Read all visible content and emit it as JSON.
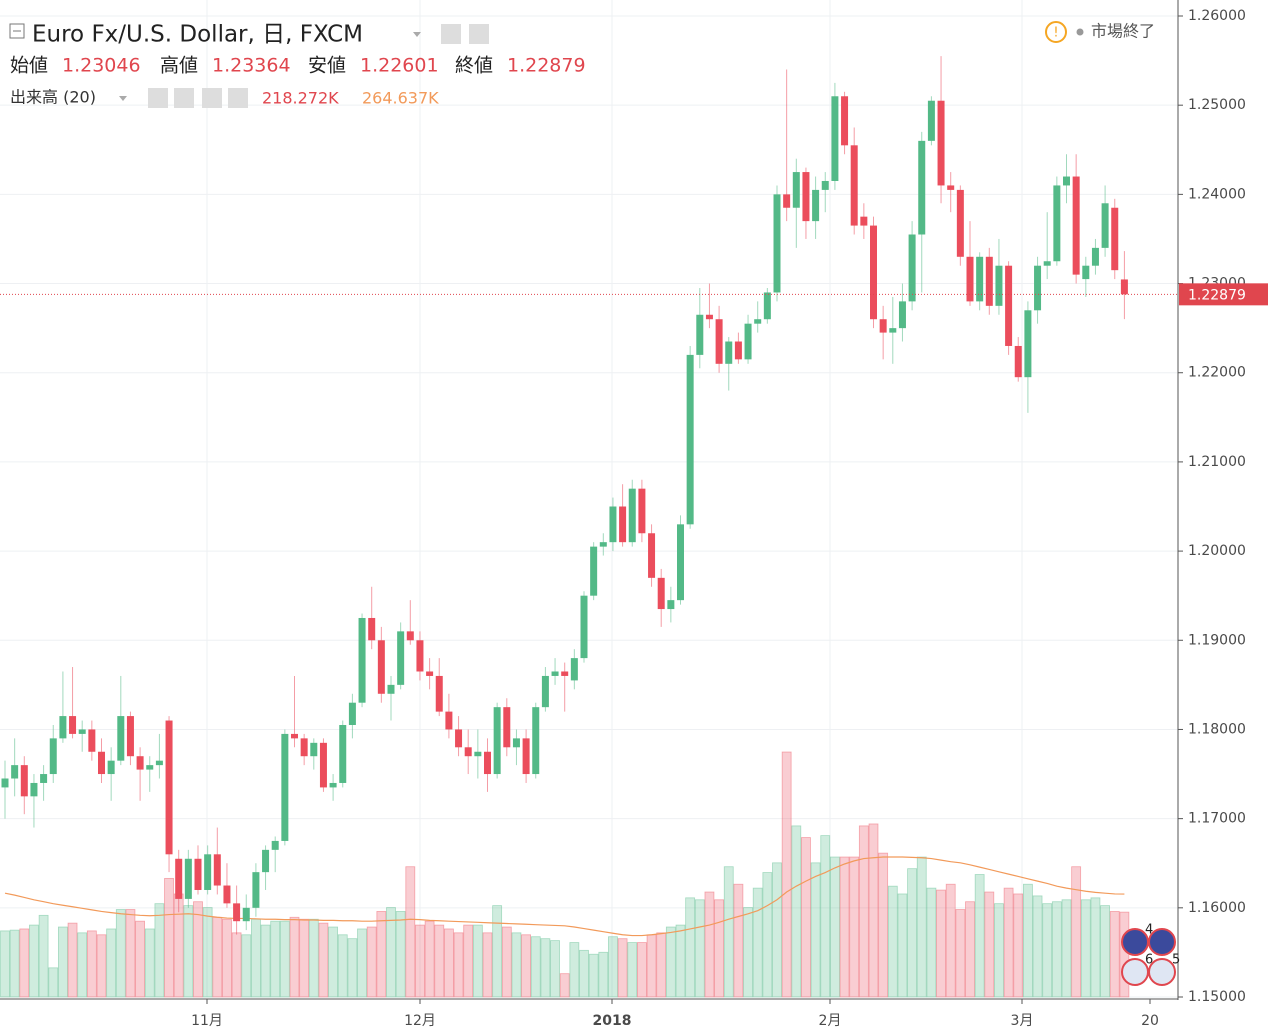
{
  "chart_data": {
    "type": "candlestick",
    "title": "Euro Fx/U.S. Dollar, 日, FXCM",
    "status": "市場終了",
    "ohlc_labels": [
      "始値",
      "高値",
      "安値",
      "終値"
    ],
    "up_color": "#53b987",
    "down_color": "#eb4d5c",
    "grid": true,
    "ylim": [
      1.15,
      1.26
    ],
    "yticks": [
      {
        "value": 1.15,
        "label": "1.15000"
      },
      {
        "value": 1.16,
        "label": "1.16000"
      },
      {
        "value": 1.17,
        "label": "1.17000"
      },
      {
        "value": 1.18,
        "label": "1.18000"
      },
      {
        "value": 1.19,
        "label": "1.19000"
      },
      {
        "value": 1.2,
        "label": "1.20000"
      },
      {
        "value": 1.21,
        "label": "1.21000"
      },
      {
        "value": 1.22,
        "label": "1.22000"
      },
      {
        "value": 1.23,
        "label": "1.23000"
      },
      {
        "value": 1.24,
        "label": "1.24000"
      },
      {
        "value": 1.25,
        "label": "1.25000"
      },
      {
        "value": 1.26,
        "label": "1.26000"
      }
    ],
    "xtick_labels": [
      "11月",
      "12月",
      "2018",
      "2月",
      "3月",
      "20"
    ],
    "candles": [
      [
        1.1735,
        1.1765,
        1.17,
        1.1745
      ],
      [
        1.1745,
        1.179,
        1.1725,
        1.176
      ],
      [
        1.176,
        1.177,
        1.1705,
        1.1725
      ],
      [
        1.1725,
        1.175,
        1.169,
        1.174
      ],
      [
        1.174,
        1.176,
        1.172,
        1.175
      ],
      [
        1.175,
        1.1805,
        1.174,
        1.179
      ],
      [
        1.179,
        1.1865,
        1.1785,
        1.1815
      ],
      [
        1.1815,
        1.187,
        1.179,
        1.1795
      ],
      [
        1.1795,
        1.181,
        1.1775,
        1.18
      ],
      [
        1.18,
        1.181,
        1.1765,
        1.1775
      ],
      [
        1.1775,
        1.179,
        1.174,
        1.175
      ],
      [
        1.175,
        1.178,
        1.172,
        1.1765
      ],
      [
        1.1765,
        1.186,
        1.176,
        1.1815
      ],
      [
        1.1815,
        1.182,
        1.176,
        1.177
      ],
      [
        1.177,
        1.178,
        1.172,
        1.1755
      ],
      [
        1.1755,
        1.177,
        1.173,
        1.176
      ],
      [
        1.176,
        1.1795,
        1.1745,
        1.1765
      ],
      [
        1.181,
        1.1815,
        1.164,
        1.166
      ],
      [
        1.1655,
        1.1665,
        1.1595,
        1.161
      ],
      [
        1.161,
        1.1665,
        1.16,
        1.1655
      ],
      [
        1.1655,
        1.167,
        1.1615,
        1.162
      ],
      [
        1.162,
        1.167,
        1.1615,
        1.166
      ],
      [
        1.166,
        1.169,
        1.1615,
        1.1625
      ],
      [
        1.1625,
        1.165,
        1.16,
        1.1605
      ],
      [
        1.1605,
        1.1625,
        1.157,
        1.1585
      ],
      [
        1.1585,
        1.1615,
        1.1575,
        1.16
      ],
      [
        1.16,
        1.165,
        1.159,
        1.164
      ],
      [
        1.164,
        1.167,
        1.162,
        1.1665
      ],
      [
        1.1665,
        1.168,
        1.164,
        1.1675
      ],
      [
        1.1675,
        1.18,
        1.167,
        1.1795
      ],
      [
        1.1795,
        1.186,
        1.178,
        1.179
      ],
      [
        1.179,
        1.1795,
        1.176,
        1.177
      ],
      [
        1.177,
        1.179,
        1.1755,
        1.1785
      ],
      [
        1.1785,
        1.179,
        1.173,
        1.1735
      ],
      [
        1.1735,
        1.175,
        1.172,
        1.174
      ],
      [
        1.174,
        1.181,
        1.1735,
        1.1805
      ],
      [
        1.1805,
        1.184,
        1.179,
        1.183
      ],
      [
        1.183,
        1.193,
        1.1825,
        1.1925
      ],
      [
        1.1925,
        1.196,
        1.189,
        1.19
      ],
      [
        1.19,
        1.1915,
        1.183,
        1.184
      ],
      [
        1.184,
        1.186,
        1.181,
        1.185
      ],
      [
        1.185,
        1.192,
        1.1845,
        1.191
      ],
      [
        1.191,
        1.1945,
        1.1895,
        1.19
      ],
      [
        1.19,
        1.191,
        1.1855,
        1.1865
      ],
      [
        1.1865,
        1.188,
        1.1845,
        1.186
      ],
      [
        1.186,
        1.188,
        1.1815,
        1.182
      ],
      [
        1.182,
        1.184,
        1.179,
        1.18
      ],
      [
        1.18,
        1.1815,
        1.177,
        1.178
      ],
      [
        1.178,
        1.18,
        1.175,
        1.177
      ],
      [
        1.177,
        1.18,
        1.1745,
        1.1775
      ],
      [
        1.1775,
        1.179,
        1.173,
        1.175
      ],
      [
        1.175,
        1.183,
        1.1745,
        1.1825
      ],
      [
        1.1825,
        1.1835,
        1.177,
        1.178
      ],
      [
        1.178,
        1.18,
        1.176,
        1.179
      ],
      [
        1.179,
        1.18,
        1.174,
        1.175
      ],
      [
        1.175,
        1.183,
        1.1745,
        1.1825
      ],
      [
        1.1825,
        1.187,
        1.182,
        1.186
      ],
      [
        1.186,
        1.188,
        1.185,
        1.1865
      ],
      [
        1.1865,
        1.1875,
        1.182,
        1.186
      ],
      [
        1.1855,
        1.189,
        1.1845,
        1.188
      ],
      [
        1.188,
        1.1955,
        1.1875,
        1.195
      ],
      [
        1.195,
        1.201,
        1.1945,
        1.2005
      ],
      [
        1.2005,
        1.202,
        1.1995,
        1.201
      ],
      [
        1.201,
        1.206,
        1.2,
        1.205
      ],
      [
        1.205,
        1.2075,
        1.2005,
        1.201
      ],
      [
        1.201,
        1.208,
        1.2005,
        1.207
      ],
      [
        1.207,
        1.208,
        1.201,
        1.202
      ],
      [
        1.202,
        1.203,
        1.196,
        1.197
      ],
      [
        1.197,
        1.198,
        1.1915,
        1.1935
      ],
      [
        1.1935,
        1.196,
        1.192,
        1.1945
      ],
      [
        1.1945,
        1.204,
        1.194,
        1.203
      ],
      [
        1.203,
        1.223,
        1.2025,
        1.222
      ],
      [
        1.222,
        1.2295,
        1.2205,
        1.2265
      ],
      [
        1.2265,
        1.23,
        1.225,
        1.226
      ],
      [
        1.226,
        1.2275,
        1.22,
        1.221
      ],
      [
        1.221,
        1.224,
        1.218,
        1.2235
      ],
      [
        1.2235,
        1.2245,
        1.221,
        1.2215
      ],
      [
        1.2215,
        1.2265,
        1.221,
        1.2255
      ],
      [
        1.2255,
        1.228,
        1.2245,
        1.226
      ],
      [
        1.226,
        1.2295,
        1.2255,
        1.229
      ],
      [
        1.229,
        1.241,
        1.228,
        1.24
      ],
      [
        1.24,
        1.254,
        1.237,
        1.2385
      ],
      [
        1.2385,
        1.244,
        1.234,
        1.2425
      ],
      [
        1.2425,
        1.243,
        1.235,
        1.237
      ],
      [
        1.237,
        1.242,
        1.235,
        1.2405
      ],
      [
        1.2405,
        1.2425,
        1.238,
        1.2415
      ],
      [
        1.2415,
        1.2525,
        1.2405,
        1.251
      ],
      [
        1.251,
        1.2515,
        1.2445,
        1.2455
      ],
      [
        1.2455,
        1.2475,
        1.2355,
        1.2365
      ],
      [
        1.2375,
        1.239,
        1.235,
        1.2365
      ],
      [
        1.2365,
        1.2375,
        1.225,
        1.226
      ],
      [
        1.226,
        1.2275,
        1.2215,
        1.2245
      ],
      [
        1.2245,
        1.2285,
        1.221,
        1.225
      ],
      [
        1.225,
        1.23,
        1.2235,
        1.228
      ],
      [
        1.228,
        1.237,
        1.227,
        1.2355
      ],
      [
        1.2355,
        1.247,
        1.229,
        1.246
      ],
      [
        1.246,
        1.251,
        1.2455,
        1.2505
      ],
      [
        1.2505,
        1.2555,
        1.239,
        1.241
      ],
      [
        1.241,
        1.2425,
        1.238,
        1.2405
      ],
      [
        1.2405,
        1.241,
        1.232,
        1.233
      ],
      [
        1.233,
        1.237,
        1.2275,
        1.228
      ],
      [
        1.228,
        1.2335,
        1.227,
        1.233
      ],
      [
        1.233,
        1.234,
        1.2265,
        1.2275
      ],
      [
        1.2275,
        1.235,
        1.2265,
        1.232
      ],
      [
        1.232,
        1.2325,
        1.222,
        1.223
      ],
      [
        1.223,
        1.224,
        1.219,
        1.2195
      ],
      [
        1.2195,
        1.228,
        1.2155,
        1.227
      ],
      [
        1.227,
        1.233,
        1.2255,
        1.232
      ],
      [
        1.232,
        1.238,
        1.2305,
        1.2325
      ],
      [
        1.2325,
        1.242,
        1.232,
        1.241
      ],
      [
        1.241,
        1.2445,
        1.239,
        1.242
      ],
      [
        1.242,
        1.2445,
        1.23,
        1.231
      ],
      [
        1.2305,
        1.233,
        1.2285,
        1.232
      ],
      [
        1.232,
        1.235,
        1.231,
        1.234
      ],
      [
        1.234,
        1.241,
        1.233,
        1.239
      ],
      [
        1.2385,
        1.2395,
        1.2305,
        1.2315
      ],
      [
        1.23046,
        1.23364,
        1.22601,
        1.22879
      ]
    ],
    "volume": {
      "name": "出来高 (20)",
      "values": [
        170,
        172,
        175,
        185,
        210,
        75,
        180,
        190,
        165,
        170,
        160,
        175,
        225,
        225,
        195,
        175,
        240,
        305,
        265,
        235,
        245,
        230,
        205,
        200,
        165,
        160,
        200,
        185,
        195,
        195,
        205,
        200,
        200,
        190,
        180,
        160,
        150,
        175,
        180,
        220,
        230,
        220,
        335,
        185,
        195,
        185,
        175,
        165,
        185,
        185,
        165,
        235,
        180,
        165,
        160,
        155,
        150,
        145,
        60,
        140,
        120,
        110,
        115,
        155,
        150,
        140,
        140,
        160,
        165,
        180,
        185,
        255,
        250,
        270,
        250,
        335,
        290,
        230,
        280,
        320,
        345,
        630,
        440,
        410,
        345,
        415,
        360,
        360,
        360,
        440,
        445,
        370,
        285,
        265,
        330,
        360,
        280,
        275,
        290,
        225,
        245,
        315,
        270,
        240,
        280,
        265,
        290,
        260,
        240,
        245,
        250,
        335,
        250,
        255,
        235,
        220,
        218.272
      ],
      "last_value_label": "218.272K"
    },
    "ma": {
      "color": "#f29a5a",
      "values": [
        267,
        262,
        256,
        250,
        245,
        240,
        236,
        232,
        228,
        224,
        220,
        217,
        214,
        212,
        210,
        209,
        210,
        212,
        213,
        214,
        212,
        208,
        205,
        203,
        202,
        202,
        201,
        200,
        200,
        199,
        199,
        198,
        198,
        197,
        197,
        196,
        196,
        195,
        195,
        196,
        197,
        198,
        200,
        199,
        197,
        196,
        195,
        194,
        193,
        192,
        191,
        190,
        189,
        188,
        187,
        186,
        185,
        184,
        183,
        180,
        176,
        172,
        168,
        164,
        160,
        158,
        158,
        160,
        163,
        166,
        170,
        175,
        180,
        185,
        192,
        200,
        207,
        214,
        222,
        235,
        250,
        270,
        285,
        298,
        310,
        320,
        332,
        342,
        350,
        356,
        358,
        360,
        360,
        360,
        359,
        358,
        356,
        352,
        348,
        345,
        340,
        334,
        328,
        322,
        316,
        310,
        304,
        298,
        292,
        285,
        280,
        276,
        272,
        269,
        267,
        265,
        264.637
      ],
      "last_value_label": "264.637K"
    },
    "events": [
      "4",
      "6",
      "5"
    ]
  }
}
